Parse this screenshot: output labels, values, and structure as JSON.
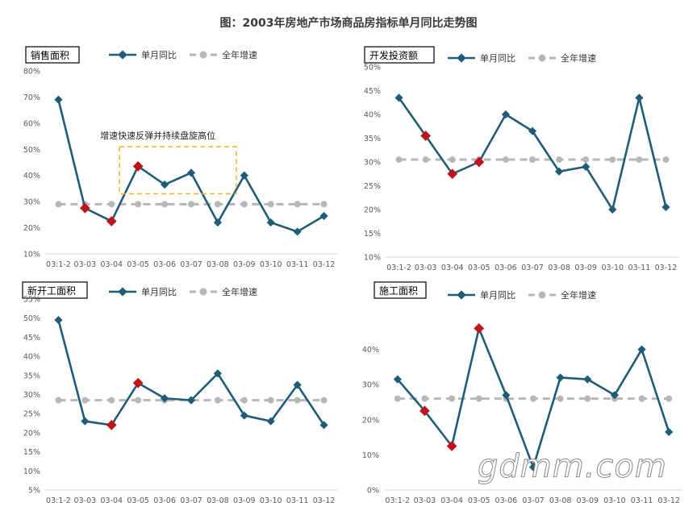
{
  "page_title": "图：2003年房地产市场商品房指标单月同比走势图",
  "legend_monthly": "单月同比",
  "legend_annual": "全年增速",
  "watermark": "gdmm.com",
  "colors": {
    "monthly": "#1f5c78",
    "annual": "#b7b7b7",
    "highlight_point": "#c0141c",
    "annotation_box": "#f0b429"
  },
  "chart_data": [
    {
      "type": "line",
      "title": "销售面积",
      "categories": [
        "03:1-2",
        "03-03",
        "03-04",
        "03-05",
        "03-06",
        "03-07",
        "03-08",
        "03-09",
        "03-10",
        "03-11",
        "03-12"
      ],
      "ylim": [
        10,
        80
      ],
      "yticks": [
        "10%",
        "20%",
        "30%",
        "40%",
        "50%",
        "60%",
        "70%",
        "80%"
      ],
      "series": [
        {
          "name": "单月同比",
          "values": [
            69,
            27.5,
            22.5,
            43.5,
            36.5,
            41,
            22,
            40,
            22,
            18.5,
            24.5
          ]
        },
        {
          "name": "全年增速",
          "values": [
            29,
            29,
            29,
            29,
            29,
            29,
            29,
            29,
            29,
            29,
            29
          ]
        }
      ],
      "red_points": [
        1,
        2,
        3
      ],
      "annotation": {
        "text": "增速快速反弹并持续盘旋高位",
        "from": 3,
        "to": 6,
        "ymin": 33,
        "ymax": 51
      }
    },
    {
      "type": "line",
      "title": "开发投资额",
      "categories": [
        "03:1-2",
        "03-03",
        "03-04",
        "03-05",
        "03-06",
        "03-07",
        "03-08",
        "03-09",
        "03-10",
        "03-11",
        "03-12"
      ],
      "ylim": [
        10,
        50
      ],
      "yticks": [
        "10%",
        "15%",
        "20%",
        "25%",
        "30%",
        "35%",
        "40%",
        "45%",
        "50%"
      ],
      "series": [
        {
          "name": "单月同比",
          "values": [
            43.5,
            35.5,
            27.5,
            30,
            40,
            36.5,
            28,
            29,
            20,
            43.5,
            20.5
          ]
        },
        {
          "name": "全年增速",
          "values": [
            30.5,
            30.5,
            30.5,
            30.5,
            30.5,
            30.5,
            30.5,
            30.5,
            30.5,
            30.5,
            30.5
          ]
        }
      ],
      "red_points": [
        1,
        2,
        3
      ]
    },
    {
      "type": "line",
      "title": "新开工面积",
      "categories": [
        "03:1-2",
        "03-03",
        "03-04",
        "03-05",
        "03-06",
        "03-07",
        "03-08",
        "03-09",
        "03-10",
        "03-11",
        "03-12"
      ],
      "ylim": [
        5,
        55
      ],
      "yticks": [
        "5%",
        "10%",
        "15%",
        "20%",
        "25%",
        "30%",
        "35%",
        "40%",
        "45%",
        "50%",
        "55%"
      ],
      "series": [
        {
          "name": "单月同比",
          "values": [
            49.5,
            23,
            22,
            33,
            29,
            28.5,
            35.5,
            24.5,
            23,
            32.5,
            22
          ]
        },
        {
          "name": "全年增速",
          "values": [
            28.5,
            28.5,
            28.5,
            28.5,
            28.5,
            28.5,
            28.5,
            28.5,
            28.5,
            28.5,
            28.5
          ]
        }
      ],
      "red_points": [
        2,
        3
      ]
    },
    {
      "type": "line",
      "title": "施工面积",
      "categories": [
        "03:1-2",
        "03-03",
        "03-04",
        "03-05",
        "03-06",
        "03-07",
        "03-08",
        "03-09",
        "03-10",
        "03-11",
        "03-12"
      ],
      "ylim": [
        0,
        50
      ],
      "yticks": [
        "0%",
        "10%",
        "20%",
        "30%",
        "40%"
      ],
      "series": [
        {
          "name": "单月同比",
          "values": [
            31.5,
            22.5,
            12.5,
            46,
            27,
            6.5,
            32,
            31.5,
            27,
            40,
            16.5
          ]
        },
        {
          "name": "全年增速",
          "values": [
            26,
            26,
            26,
            26,
            26,
            26,
            26,
            26,
            26,
            26,
            26
          ]
        }
      ],
      "red_points": [
        1,
        2,
        3
      ]
    }
  ]
}
